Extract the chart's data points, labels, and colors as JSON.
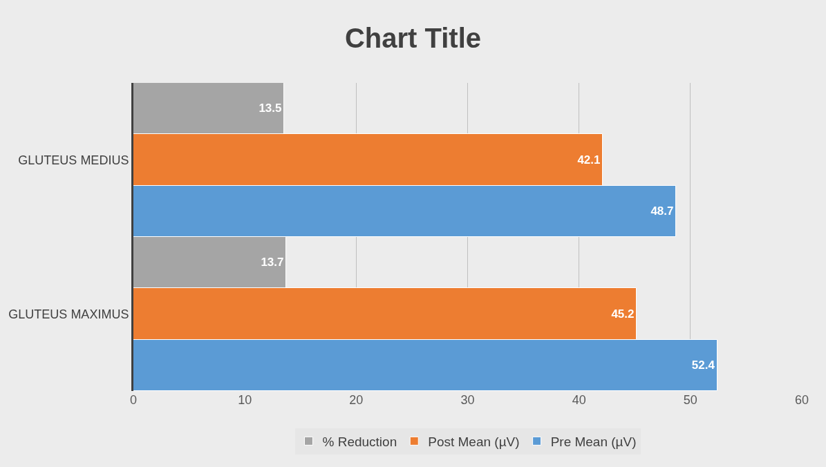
{
  "chart_data": {
    "type": "bar",
    "title": "Chart Title",
    "orientation": "horizontal",
    "categories": [
      "GLUTEUS MEDIUS",
      "GLUTEUS MAXIMUS"
    ],
    "series": [
      {
        "name": "% Reduction",
        "color": "#a5a5a5",
        "values": [
          13.5,
          13.7
        ]
      },
      {
        "name": "Post Mean (µV)",
        "color": "#ed7d31",
        "values": [
          42.1,
          45.2
        ]
      },
      {
        "name": "Pre Mean (µV)",
        "color": "#5b9bd5",
        "values": [
          48.7,
          52.4
        ]
      }
    ],
    "xlim": [
      0,
      60
    ],
    "xticks": [
      0,
      10,
      20,
      30,
      40,
      50,
      60
    ],
    "grid": "x",
    "legend": "bottom",
    "data_labels": true
  }
}
